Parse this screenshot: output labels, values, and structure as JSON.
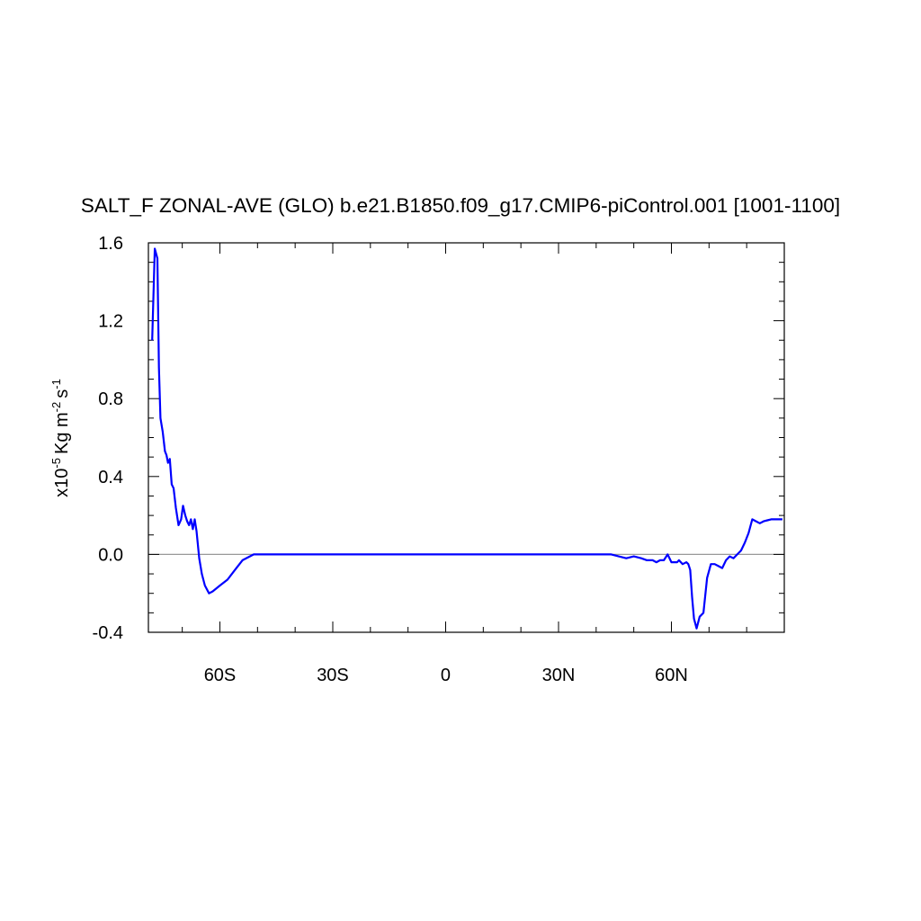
{
  "chart_data": {
    "type": "line",
    "title": "SALT_F ZONAL-AVE (GLO) b.e21.B1850.f09_g17.CMIP6-piControl.001 [1001-1100]",
    "ylabel_prefix": "x10",
    "ylabel_exp": "-5",
    "ylabel_units": "Kg m",
    "ylabel_exp2": "-2",
    "ylabel_s": "s",
    "ylabel_exp3": "-1",
    "xlim": [
      -79,
      90
    ],
    "ylim": [
      -0.4,
      1.6
    ],
    "x_ticks": [
      {
        "value": -60,
        "label": "60S"
      },
      {
        "value": -30,
        "label": "30S"
      },
      {
        "value": 0,
        "label": "0"
      },
      {
        "value": 30,
        "label": "30N"
      },
      {
        "value": 60,
        "label": "60N"
      }
    ],
    "y_ticks": [
      {
        "value": 1.6,
        "label": "1.6"
      },
      {
        "value": 1.2,
        "label": "1.2"
      },
      {
        "value": 0.8,
        "label": "0.8"
      },
      {
        "value": 0.4,
        "label": "0.4"
      },
      {
        "value": 0.0,
        "label": "0.0"
      },
      {
        "value": -0.4,
        "label": "-0.4"
      }
    ],
    "zero_line": true,
    "series": [
      {
        "color": "#0000ff",
        "x": [
          -78.0,
          -77.3,
          -76.6,
          -76.2,
          -75.8,
          -75.2,
          -74.6,
          -74.2,
          -73.8,
          -73.3,
          -72.8,
          -72.3,
          -71.7,
          -71.0,
          -70.3,
          -69.8,
          -69.2,
          -68.7,
          -68.2,
          -67.7,
          -67.2,
          -66.7,
          -66.2,
          -65.5,
          -64.8,
          -64.0,
          -62.9,
          -61.9,
          -60.0,
          -58.0,
          -56.0,
          -54.0,
          -51.0,
          -48.0,
          -45.0,
          44.0,
          46.0,
          48.0,
          50.0,
          52.0,
          53.5,
          55.0,
          56.0,
          57.0,
          58.0,
          59.0,
          60.0,
          61.0,
          61.5,
          62.0,
          63.0,
          64.0,
          64.5,
          65.0,
          65.5,
          66.0,
          66.7,
          67.5,
          68.5,
          69.5,
          70.5,
          71.5,
          72.5,
          73.5,
          74.5,
          75.5,
          76.5,
          77.5,
          78.5,
          79.5,
          80.5,
          81.5,
          82.5,
          83.5,
          84.5,
          85.5,
          86.5,
          87.5,
          88.5,
          89.5
        ],
        "y": [
          1.1,
          1.57,
          1.52,
          0.96,
          0.7,
          0.63,
          0.53,
          0.51,
          0.47,
          0.49,
          0.36,
          0.34,
          0.24,
          0.15,
          0.18,
          0.25,
          0.2,
          0.17,
          0.15,
          0.18,
          0.13,
          0.18,
          0.12,
          -0.02,
          -0.1,
          -0.16,
          -0.2,
          -0.19,
          -0.16,
          -0.13,
          -0.08,
          -0.03,
          0.0,
          0.0,
          0.0,
          0.0,
          -0.01,
          -0.02,
          -0.01,
          -0.02,
          -0.03,
          -0.03,
          -0.04,
          -0.03,
          -0.03,
          0.0,
          -0.04,
          -0.04,
          -0.04,
          -0.03,
          -0.05,
          -0.04,
          -0.05,
          -0.08,
          -0.22,
          -0.33,
          -0.38,
          -0.32,
          -0.3,
          -0.12,
          -0.05,
          -0.05,
          -0.06,
          -0.07,
          -0.03,
          -0.01,
          -0.02,
          0.0,
          0.02,
          0.06,
          0.11,
          0.18,
          0.17,
          0.16,
          0.17,
          0.175,
          0.18,
          0.18,
          0.18,
          0.18
        ]
      }
    ]
  }
}
